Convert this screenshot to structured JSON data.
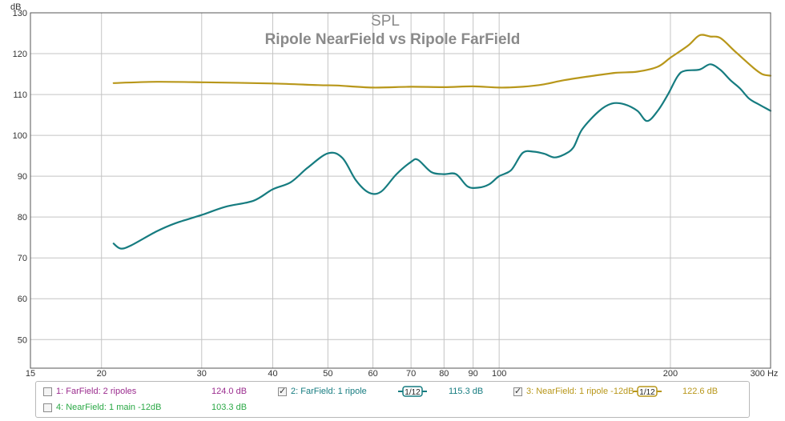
{
  "chart_data": {
    "type": "line",
    "title": "SPL",
    "subtitle": "Ripole NearField vs Ripole FarField",
    "ylabel": "dB",
    "xunit": "Hz",
    "xscale": "log",
    "xlim": [
      15,
      300
    ],
    "ylim": [
      43,
      130
    ],
    "xticks": [
      15,
      20,
      30,
      40,
      50,
      60,
      70,
      80,
      90,
      100,
      200,
      300
    ],
    "xtick_labels": [
      "15",
      "20",
      "30",
      "40",
      "50",
      "60",
      "70",
      "80",
      "90",
      "100",
      "200",
      "300 Hz"
    ],
    "yticks": [
      50,
      60,
      70,
      80,
      90,
      100,
      110,
      120,
      130
    ],
    "ytick_labels": [
      "50",
      "60",
      "70",
      "80",
      "90",
      "100",
      "110",
      "120",
      "130"
    ],
    "grid": true,
    "series": [
      {
        "name": "3: NearField: 1 ripole -12dB",
        "color": "#b8971a",
        "points": [
          [
            21,
            112.8
          ],
          [
            25,
            113.1
          ],
          [
            30,
            113.0
          ],
          [
            40,
            112.7
          ],
          [
            48,
            112.3
          ],
          [
            52,
            112.2
          ],
          [
            60,
            111.7
          ],
          [
            70,
            111.9
          ],
          [
            80,
            111.8
          ],
          [
            90,
            112.0
          ],
          [
            100,
            111.7
          ],
          [
            110,
            111.9
          ],
          [
            120,
            112.5
          ],
          [
            130,
            113.5
          ],
          [
            145,
            114.5
          ],
          [
            160,
            115.3
          ],
          [
            175,
            115.6
          ],
          [
            190,
            116.8
          ],
          [
            200,
            119.0
          ],
          [
            215,
            122.0
          ],
          [
            225,
            124.5
          ],
          [
            235,
            124.2
          ],
          [
            245,
            123.8
          ],
          [
            260,
            120.5
          ],
          [
            280,
            116.5
          ],
          [
            290,
            115.0
          ],
          [
            300,
            114.6
          ]
        ]
      },
      {
        "name": "2: FarField: 1 ripole",
        "color": "#167c80",
        "points": [
          [
            21,
            73.5
          ],
          [
            21.6,
            72.3
          ],
          [
            22.5,
            73.0
          ],
          [
            25,
            76.5
          ],
          [
            27,
            78.5
          ],
          [
            30,
            80.5
          ],
          [
            33,
            82.5
          ],
          [
            37,
            84.0
          ],
          [
            40,
            86.8
          ],
          [
            43,
            88.5
          ],
          [
            46,
            92.0
          ],
          [
            50,
            95.6
          ],
          [
            53,
            94.5
          ],
          [
            56,
            89.0
          ],
          [
            59,
            86.0
          ],
          [
            62,
            86.2
          ],
          [
            66,
            90.5
          ],
          [
            70,
            93.5
          ],
          [
            72,
            94.0
          ],
          [
            76,
            91.0
          ],
          [
            80,
            90.5
          ],
          [
            84,
            90.5
          ],
          [
            88,
            87.5
          ],
          [
            92,
            87.2
          ],
          [
            96,
            88.0
          ],
          [
            100,
            90.0
          ],
          [
            105,
            91.5
          ],
          [
            110,
            95.7
          ],
          [
            115,
            96.0
          ],
          [
            120,
            95.5
          ],
          [
            125,
            94.6
          ],
          [
            130,
            95.3
          ],
          [
            135,
            97.0
          ],
          [
            140,
            101.5
          ],
          [
            150,
            106.0
          ],
          [
            158,
            107.8
          ],
          [
            166,
            107.6
          ],
          [
            175,
            106.0
          ],
          [
            182,
            103.5
          ],
          [
            190,
            106.0
          ],
          [
            198,
            110.0
          ],
          [
            206,
            114.5
          ],
          [
            212,
            115.8
          ],
          [
            225,
            116.1
          ],
          [
            235,
            117.4
          ],
          [
            245,
            116.0
          ],
          [
            255,
            113.5
          ],
          [
            265,
            111.5
          ],
          [
            275,
            109.0
          ],
          [
            285,
            107.7
          ],
          [
            300,
            106.0
          ]
        ]
      }
    ]
  },
  "legend": {
    "items": [
      {
        "label": "1: FarField: 2 ripoles",
        "value": "124.0 dB",
        "checked": false,
        "color": "#9b2c8e"
      },
      {
        "label": "2: FarField: 1 ripole",
        "value": "115.3 dB",
        "checked": true,
        "color": "#167c80",
        "smoothing": "1/12"
      },
      {
        "label": "3: NearField: 1 ripole -12dB",
        "value": "122.6 dB",
        "checked": true,
        "color": "#b8971a",
        "smoothing": "1/12"
      },
      {
        "label": "4: NearField: 1 main -12dB",
        "value": "103.3 dB",
        "checked": false,
        "color": "#2aa845"
      }
    ]
  }
}
